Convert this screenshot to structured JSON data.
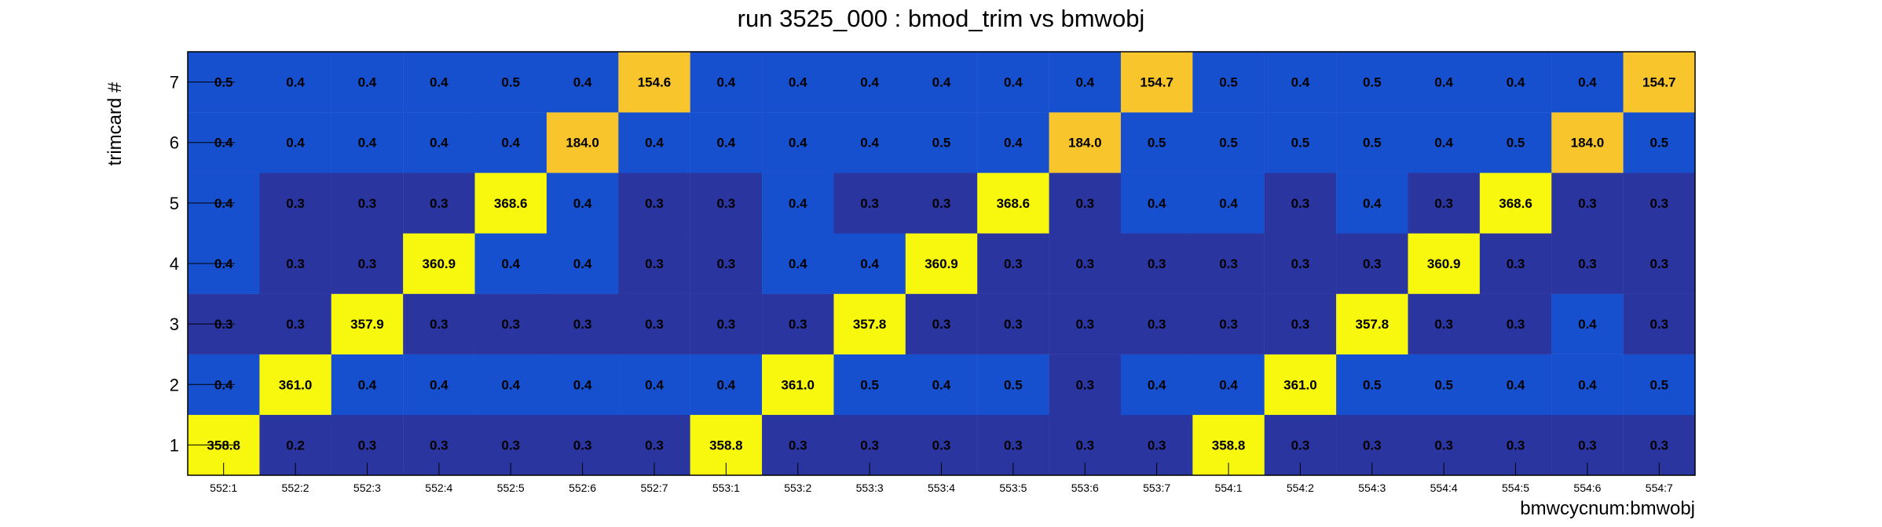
{
  "chart_data": {
    "type": "heatmap",
    "title": "run 3525_000 : bmod_trim vs bmwobj",
    "xlabel": "bmwcycnum:bmwobj",
    "ylabel": "trimcard #",
    "x_categories": [
      "552:1",
      "552:2",
      "552:3",
      "552:4",
      "552:5",
      "552:6",
      "552:7",
      "553:1",
      "553:2",
      "553:3",
      "553:4",
      "553:5",
      "553:6",
      "553:7",
      "554:1",
      "554:2",
      "554:3",
      "554:4",
      "554:5",
      "554:6",
      "554:7"
    ],
    "y_categories": [
      "1",
      "2",
      "3",
      "4",
      "5",
      "6",
      "7"
    ],
    "z": [
      [
        "358.8",
        "0.2",
        "0.3",
        "0.3",
        "0.3",
        "0.3",
        "0.3",
        "358.8",
        "0.3",
        "0.3",
        "0.3",
        "0.3",
        "0.3",
        "0.3",
        "358.8",
        "0.3",
        "0.3",
        "0.3",
        "0.3",
        "0.3",
        "0.3"
      ],
      [
        "0.4",
        "361.0",
        "0.4",
        "0.4",
        "0.4",
        "0.4",
        "0.4",
        "0.4",
        "361.0",
        "0.5",
        "0.4",
        "0.5",
        "0.3",
        "0.4",
        "0.4",
        "361.0",
        "0.5",
        "0.5",
        "0.4",
        "0.4",
        "0.5"
      ],
      [
        "0.3",
        "0.3",
        "357.9",
        "0.3",
        "0.3",
        "0.3",
        "0.3",
        "0.3",
        "0.3",
        "357.8",
        "0.3",
        "0.3",
        "0.3",
        "0.3",
        "0.3",
        "0.3",
        "357.8",
        "0.3",
        "0.3",
        "0.4",
        "0.3"
      ],
      [
        "0.4",
        "0.3",
        "0.3",
        "360.9",
        "0.4",
        "0.4",
        "0.3",
        "0.3",
        "0.4",
        "0.4",
        "360.9",
        "0.3",
        "0.3",
        "0.3",
        "0.3",
        "0.3",
        "0.3",
        "360.9",
        "0.3",
        "0.3",
        "0.3"
      ],
      [
        "0.4",
        "0.3",
        "0.3",
        "0.3",
        "368.6",
        "0.4",
        "0.3",
        "0.3",
        "0.4",
        "0.3",
        "0.3",
        "368.6",
        "0.3",
        "0.4",
        "0.4",
        "0.3",
        "0.4",
        "0.3",
        "368.6",
        "0.3",
        "0.3"
      ],
      [
        "0.4",
        "0.4",
        "0.4",
        "0.4",
        "0.4",
        "184.0",
        "0.4",
        "0.4",
        "0.4",
        "0.4",
        "0.5",
        "0.4",
        "184.0",
        "0.5",
        "0.5",
        "0.5",
        "0.5",
        "0.4",
        "0.5",
        "184.0",
        "0.5"
      ],
      [
        "0.5",
        "0.4",
        "0.4",
        "0.4",
        "0.5",
        "0.4",
        "154.6",
        "0.4",
        "0.4",
        "0.4",
        "0.4",
        "0.4",
        "0.4",
        "154.7",
        "0.5",
        "0.4",
        "0.5",
        "0.4",
        "0.4",
        "0.4",
        "154.7"
      ]
    ],
    "colorscale": {
      "low": "#2a35a0",
      "mid": "#1750cf",
      "high_mid": "#f8c52d",
      "high": "#f7f80e"
    },
    "grid": false,
    "legend": "none"
  }
}
